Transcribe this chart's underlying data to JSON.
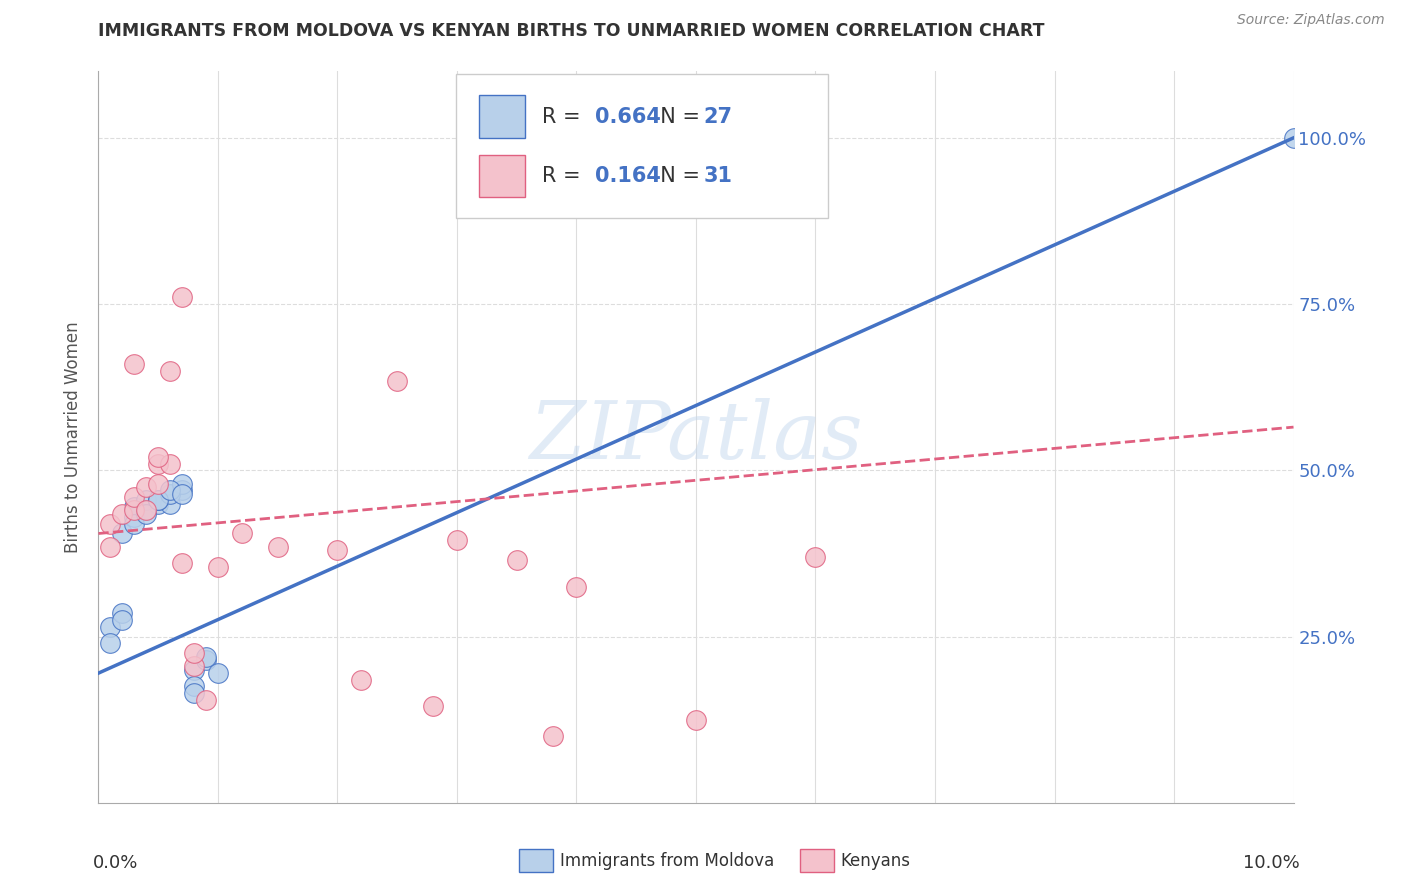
{
  "title": "IMMIGRANTS FROM MOLDOVA VS KENYAN BIRTHS TO UNMARRIED WOMEN CORRELATION CHART",
  "source": "Source: ZipAtlas.com",
  "ylabel": "Births to Unmarried Women",
  "legend_label1": "Immigrants from Moldova",
  "legend_label2": "Kenyans",
  "R1": "0.664",
  "N1": "27",
  "R2": "0.164",
  "N2": "31",
  "blue_fill": "#b8d0ea",
  "blue_edge": "#4472c4",
  "pink_fill": "#f4c2cc",
  "pink_edge": "#e06080",
  "blue_line_color": "#4472c4",
  "pink_line_color": "#e06080",
  "blue_scatter_x": [
    0.001,
    0.002,
    0.003,
    0.004,
    0.005,
    0.006,
    0.007,
    0.008,
    0.009,
    0.01,
    0.001,
    0.002,
    0.003,
    0.004,
    0.005,
    0.006,
    0.007,
    0.008,
    0.002,
    0.003,
    0.004,
    0.005,
    0.006,
    0.007,
    0.008,
    0.009,
    0.1
  ],
  "blue_scatter_y": [
    0.265,
    0.285,
    0.43,
    0.44,
    0.45,
    0.45,
    0.47,
    0.2,
    0.215,
    0.195,
    0.24,
    0.405,
    0.445,
    0.455,
    0.455,
    0.465,
    0.48,
    0.175,
    0.275,
    0.42,
    0.435,
    0.455,
    0.47,
    0.465,
    0.165,
    0.22,
    1.0
  ],
  "pink_scatter_x": [
    0.001,
    0.001,
    0.002,
    0.003,
    0.003,
    0.004,
    0.004,
    0.005,
    0.005,
    0.006,
    0.006,
    0.007,
    0.008,
    0.008,
    0.009,
    0.01,
    0.012,
    0.015,
    0.02,
    0.025,
    0.03,
    0.035,
    0.04,
    0.05,
    0.022,
    0.028,
    0.038,
    0.003,
    0.005,
    0.007,
    0.06
  ],
  "pink_scatter_y": [
    0.385,
    0.42,
    0.435,
    0.44,
    0.46,
    0.44,
    0.475,
    0.48,
    0.51,
    0.51,
    0.65,
    0.36,
    0.205,
    0.225,
    0.155,
    0.355,
    0.405,
    0.385,
    0.38,
    0.635,
    0.395,
    0.365,
    0.325,
    0.125,
    0.185,
    0.145,
    0.1,
    0.66,
    0.52,
    0.76,
    0.37
  ],
  "blue_line_x": [
    0.0,
    0.1
  ],
  "blue_line_y": [
    0.195,
    1.0
  ],
  "pink_line_x": [
    0.0,
    0.1
  ],
  "pink_line_y": [
    0.405,
    0.565
  ],
  "xlim": [
    0.0,
    0.1
  ],
  "ylim": [
    0.0,
    1.1
  ],
  "ytick_positions": [
    0.25,
    0.5,
    0.75,
    1.0
  ],
  "ytick_labels": [
    "25.0%",
    "50.0%",
    "75.0%",
    "100.0%"
  ],
  "background_color": "#ffffff",
  "grid_color": "#dddddd",
  "watermark": "ZIPatlas"
}
